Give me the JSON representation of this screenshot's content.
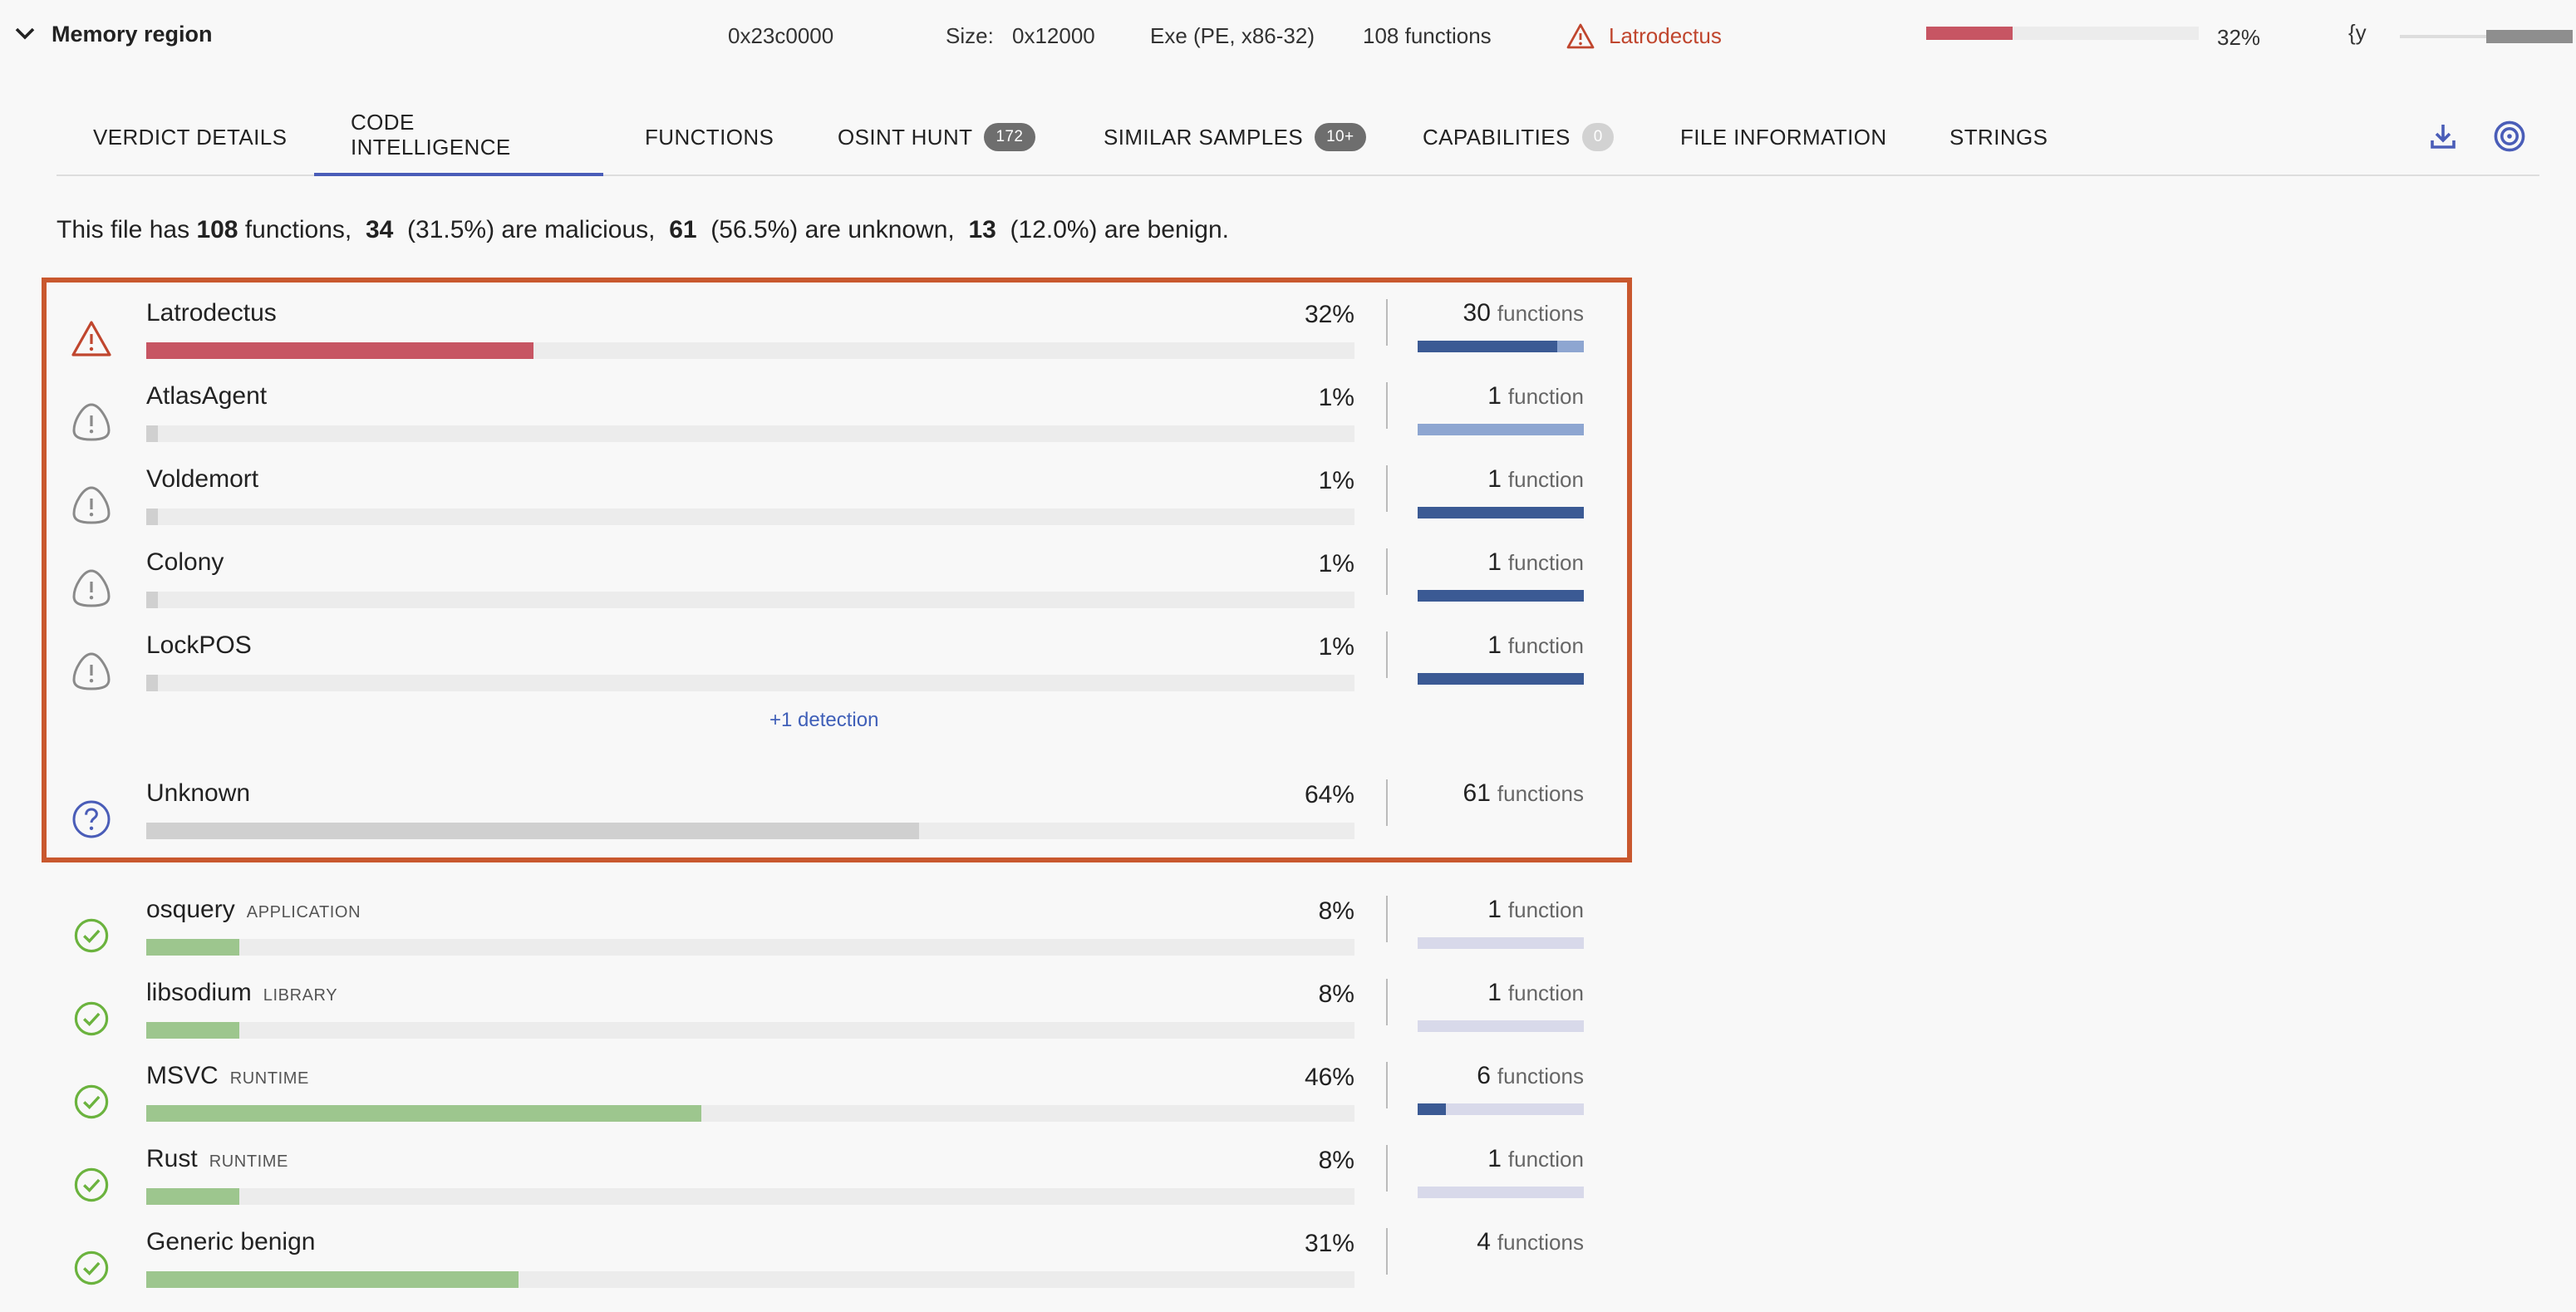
{
  "header": {
    "title": "Memory region",
    "address": "0x23c0000",
    "size_label": "Size:",
    "size_value": "0x12000",
    "file_type": "Exe (PE, x86-32)",
    "functions": "108 functions",
    "family": "Latrodectus",
    "family_color": "#c0462e",
    "score_fraction": 0.32,
    "score_pct": "32%",
    "icon_text": "{y",
    "slider_fraction": 0.5
  },
  "tabs": [
    {
      "label": "VERDICT DETAILS"
    },
    {
      "label": "CODE INTELLIGENCE",
      "active": true
    },
    {
      "label": "FUNCTIONS"
    },
    {
      "label": "OSINT HUNT",
      "badge": "172"
    },
    {
      "label": "SIMILAR SAMPLES",
      "badge": "10+"
    },
    {
      "label": "CAPABILITIES",
      "badge": "0"
    },
    {
      "label": "FILE INFORMATION"
    },
    {
      "label": "STRINGS"
    }
  ],
  "toolbar": {
    "download_icon": "download-icon",
    "target_icon": "target-icon",
    "accent": "#4a5db8"
  },
  "summary": {
    "p1": "This file has",
    "total": "108",
    "p2": "functions,",
    "malicious": "34",
    "p3": "(31.5%) are malicious,",
    "unknown": "61",
    "p4": "(56.5%) are unknown,",
    "benign": "13",
    "p5": "(12.0%) are benign."
  },
  "colors": {
    "malicious": "#c75563",
    "suspicious_bar": "#d0d0d0",
    "unknown_bar": "#d0d0d0",
    "benign": "#9dc68e",
    "highlight_border": "#c9582e"
  },
  "malicious_rows": [
    {
      "name": "Latrodectus",
      "pct": "32%",
      "value": 0.32,
      "count": "30",
      "unit": "functions",
      "icon": "warning-triangle-icon",
      "mini_dark": 0.84,
      "mini_light": 0.16
    },
    {
      "name": "AtlasAgent",
      "pct": "1%",
      "value": 0.01,
      "count": "1",
      "unit": "function",
      "icon": "suspicious-icon",
      "mini_dark": 0,
      "mini_light": 1
    },
    {
      "name": "Voldemort",
      "pct": "1%",
      "value": 0.01,
      "count": "1",
      "unit": "function",
      "icon": "suspicious-icon",
      "mini_dark": 1,
      "mini_light": 0
    },
    {
      "name": "Colony",
      "pct": "1%",
      "value": 0.01,
      "count": "1",
      "unit": "function",
      "icon": "suspicious-icon",
      "mini_dark": 1,
      "mini_light": 0
    },
    {
      "name": "LockPOS",
      "pct": "1%",
      "value": 0.01,
      "count": "1",
      "unit": "function",
      "icon": "suspicious-icon",
      "mini_dark": 1,
      "mini_light": 0
    }
  ],
  "more_link": "+1 detection",
  "unknown_row": {
    "name": "Unknown",
    "pct": "64%",
    "value": 0.64,
    "count": "61",
    "unit": "functions",
    "icon": "question-circle-icon"
  },
  "benign_rows": [
    {
      "name": "osquery",
      "tag": "APPLICATION",
      "pct": "8%",
      "value": 0.077,
      "count": "1",
      "unit": "function",
      "icon": "check-circle-icon",
      "mini_dark": 0
    },
    {
      "name": "libsodium",
      "tag": "LIBRARY",
      "pct": "8%",
      "value": 0.077,
      "count": "1",
      "unit": "function",
      "icon": "check-circle-icon",
      "mini_dark": 0
    },
    {
      "name": "MSVC",
      "tag": "RUNTIME",
      "pct": "46%",
      "value": 0.46,
      "count": "6",
      "unit": "functions",
      "icon": "check-circle-icon",
      "mini_dark": 0.17
    },
    {
      "name": "Rust",
      "tag": "RUNTIME",
      "pct": "8%",
      "value": 0.077,
      "count": "1",
      "unit": "function",
      "icon": "check-circle-icon",
      "mini_dark": 0
    },
    {
      "name": "Generic benign",
      "tag": "",
      "pct": "31%",
      "value": 0.308,
      "count": "4",
      "unit": "functions",
      "icon": "check-circle-icon",
      "mini_dark": null
    }
  ]
}
